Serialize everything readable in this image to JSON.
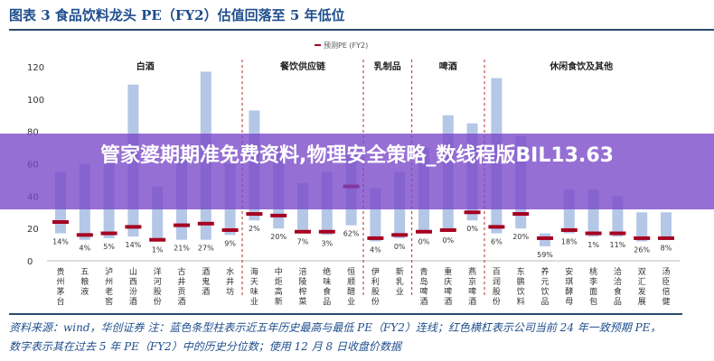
{
  "title": "图表 3   食品饮料龙头 PE（FY2）估值回落至 5 年低位",
  "chart_data": {
    "type": "bar",
    "subtype": "floating-range with marker",
    "legend": [
      "预测PE (FY2)"
    ],
    "legend_position": "top-right",
    "ylim": [
      0,
      120
    ],
    "yticks": [
      0,
      20,
      40,
      60,
      80,
      100,
      120
    ],
    "groups": [
      {
        "name": "白酒",
        "start": 0,
        "end": 7
      },
      {
        "name": "餐饮供应链",
        "start": 8,
        "end": 12
      },
      {
        "name": "乳制品",
        "start": 13,
        "end": 14
      },
      {
        "name": "啤酒",
        "start": 15,
        "end": 17
      },
      {
        "name": "休闲食饮及其他",
        "start": 18,
        "end": 25
      }
    ],
    "categories": [
      "贵州茅台",
      "五粮液",
      "泸州老窖",
      "山西汾酒",
      "洋河股份",
      "古井贡酒",
      "酒鬼酒",
      "水井坊",
      "海天味业",
      "中炬高新",
      "涪陵榨菜",
      "绝味食品",
      "恒顺醋业",
      "伊利股份",
      "新乳业",
      "青岛啤酒",
      "重庆啤酒",
      "燕京啤酒",
      "百润股份",
      "东鹏饮料",
      "养元饮品",
      "安琪酵母",
      "桃李面包",
      "洽洽食品",
      "双汇发展",
      "汤臣倍健"
    ],
    "max_pe": [
      55,
      60,
      62,
      109,
      46,
      65,
      117,
      60,
      93,
      70,
      48,
      55,
      65,
      45,
      55,
      70,
      90,
      85,
      113,
      77,
      17,
      44,
      44,
      40,
      30,
      30
    ],
    "min_pe": [
      17,
      13,
      14,
      15,
      12,
      13,
      13,
      16,
      25,
      20,
      17,
      16,
      22,
      12,
      14,
      17,
      18,
      25,
      17,
      20,
      9,
      17,
      15,
      15,
      12,
      13
    ],
    "current_pe": [
      24,
      16,
      17,
      21,
      13,
      22,
      23,
      19,
      29,
      28,
      18,
      18,
      46,
      14,
      16,
      18,
      19,
      30,
      21,
      29,
      14,
      19,
      17,
      17,
      14,
      14
    ],
    "percentile_labels": [
      "14%",
      "4%",
      "5%",
      "14%",
      "1%",
      "21%",
      "27%",
      "9%",
      "2%",
      "20%",
      "7%",
      "3%",
      "62%",
      "4%",
      "0%",
      "0%",
      "0%",
      "0%",
      "6%",
      "20%",
      "59%",
      "18%",
      "1%",
      "11%",
      "26%",
      "8%"
    ]
  },
  "banner": {
    "text": "管家婆期期准免费资料,物理安全策略_数线程版BIL13.63"
  },
  "footer": {
    "line1": "资料来源：wind，华创证券  注：蓝色条型柱表示近五年历史最高与最低 PE（FY2）连线；红色横杠表示公司当前 24 年一致预期 PE，",
    "line2": "数字表示其在过去 5 年 PE（FY2）中的历史分位数；使用 12 月 8 日收盘价数据"
  },
  "colors": {
    "bar": "#b4c7e7",
    "marker": "#a50021",
    "divider": "#c0504d",
    "title": "#1f4e8c"
  }
}
